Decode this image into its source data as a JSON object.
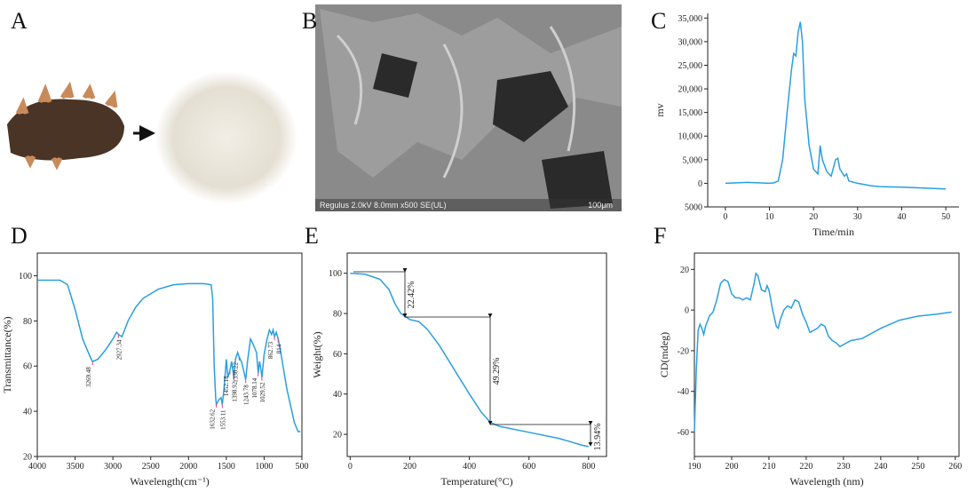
{
  "panel_labels": [
    "A",
    "B",
    "C",
    "D",
    "E",
    "F"
  ],
  "sem_caption": "Regulus 2.0kV 8.0mm x500 SE(UL)",
  "sem_scale": "100μm",
  "chart_data": [
    {
      "type": "line",
      "xlabel": "Time/min",
      "ylabel": "mv",
      "color": "#2a9fe0",
      "xlim": [
        -4,
        53
      ],
      "ylim": [
        -5000,
        36000
      ],
      "xticks": [
        0,
        10,
        20,
        30,
        40,
        50
      ],
      "yticks": [
        {
          "value": -5000,
          "label": "5000"
        },
        0,
        {
          "value": 5000,
          "label": "5,000"
        },
        {
          "value": 10000,
          "label": "10,000"
        },
        {
          "value": 15000,
          "label": "15,000"
        },
        {
          "value": 20000,
          "label": "20,000"
        },
        {
          "value": 25000,
          "label": "25,000"
        },
        {
          "value": 30000,
          "label": "30,000"
        },
        {
          "value": 35000,
          "label": "35,000"
        }
      ],
      "x": [
        0,
        5,
        10,
        11,
        12,
        13,
        14,
        15,
        15.5,
        16,
        16.5,
        17,
        17.5,
        18,
        19,
        20,
        21,
        21.5,
        22,
        23,
        24,
        25,
        25.5,
        26,
        27,
        27.5,
        28,
        30,
        33,
        35,
        40,
        45,
        50
      ],
      "values": [
        0,
        200,
        0,
        100,
        500,
        5000,
        15000,
        24000,
        27500,
        27000,
        32000,
        34200,
        30000,
        18000,
        8000,
        3000,
        2000,
        8000,
        5000,
        2500,
        1500,
        5000,
        5300,
        3000,
        1500,
        2000,
        500,
        0,
        -500,
        -700,
        -800,
        -1000,
        -1200
      ]
    },
    {
      "type": "line",
      "xlabel": "Wavelength(cm⁻¹)",
      "ylabel": "Transmittance(%)",
      "color": "#2a9fe0",
      "xlim": [
        4000,
        500
      ],
      "ylim": [
        20,
        110
      ],
      "xticks": [
        4000,
        3500,
        3000,
        2500,
        2000,
        1500,
        1000,
        500
      ],
      "yticks": [
        20,
        40,
        60,
        80,
        100
      ],
      "x": [
        4000,
        3700,
        3600,
        3500,
        3400,
        3300,
        3269,
        3200,
        3100,
        3000,
        2950,
        2927,
        2880,
        2800,
        2700,
        2600,
        2400,
        2200,
        2000,
        1800,
        1700,
        1680,
        1660,
        1640,
        1632,
        1600,
        1570,
        1553,
        1530,
        1500,
        1480,
        1452,
        1430,
        1400,
        1380,
        1350,
        1330,
        1300,
        1270,
        1243,
        1220,
        1180,
        1150,
        1100,
        1078,
        1060,
        1040,
        1029,
        1000,
        960,
        930,
        900,
        880,
        862,
        840,
        814,
        780,
        700,
        600,
        550,
        520
      ],
      "values": [
        98,
        98,
        96,
        85,
        72,
        64,
        62,
        63,
        67,
        72,
        75,
        74,
        73,
        80,
        86,
        90,
        94,
        96,
        96.5,
        96.5,
        96,
        90,
        60,
        46,
        43,
        45,
        46,
        43,
        50,
        63,
        55,
        58,
        62,
        55,
        63,
        66,
        64,
        62,
        58,
        54,
        62,
        72,
        70,
        66,
        57,
        62,
        58,
        55,
        65,
        72,
        76,
        74,
        76,
        73,
        75,
        72,
        66,
        50,
        35,
        31,
        31
      ],
      "annotations": [
        "3269.48",
        "2927.34",
        "1632.62",
        "1553.11",
        "1452.18",
        "1398.92",
        "1330.22",
        "1243.78",
        "1078.14",
        "1029.52",
        "862.73",
        "814"
      ]
    },
    {
      "type": "line",
      "xlabel": "Temperature(°C)",
      "ylabel": "Weight(%)",
      "color": "#2a9fe0",
      "xlim": [
        -10,
        860
      ],
      "ylim": [
        9,
        110
      ],
      "xticks": [
        0,
        200,
        400,
        600,
        800
      ],
      "yticks": [
        20,
        40,
        60,
        80,
        100
      ],
      "x": [
        0,
        50,
        100,
        130,
        150,
        170,
        200,
        230,
        260,
        300,
        350,
        400,
        440,
        470,
        500,
        600,
        700,
        780,
        800
      ],
      "values": [
        100,
        99.5,
        97,
        92,
        85,
        80,
        77,
        76,
        72,
        64,
        52,
        40,
        31,
        26,
        24,
        21,
        18,
        14.5,
        14
      ],
      "annotations": [
        "22.42%",
        "49.29%",
        "13.94%"
      ]
    },
    {
      "type": "line",
      "xlabel": "Wavelength (nm)",
      "ylabel": "CD(mdeg)",
      "color": "#2a9fe0",
      "xlim": [
        190,
        261
      ],
      "ylim": [
        -72,
        28
      ],
      "xticks": [
        190,
        200,
        210,
        220,
        230,
        240,
        250,
        260
      ],
      "yticks": [
        -60,
        -40,
        -20,
        0,
        20
      ],
      "x": [
        190,
        190.5,
        191,
        191.5,
        192,
        192.5,
        193,
        194,
        195,
        196,
        197,
        198,
        199,
        200,
        201,
        202,
        203,
        204,
        205,
        206,
        206.5,
        207,
        208,
        209,
        209.5,
        210,
        211,
        212,
        212.5,
        213,
        214,
        215,
        216,
        217,
        218,
        219,
        220,
        221,
        222,
        223,
        224,
        225,
        226,
        227,
        228,
        229,
        230,
        232,
        235,
        240,
        245,
        250,
        255,
        259
      ],
      "values": [
        -60,
        -30,
        -10,
        -7,
        -9,
        -12,
        -8,
        -3,
        -1,
        5,
        13,
        15,
        14,
        8,
        6,
        6,
        5,
        6,
        5,
        13,
        18,
        17,
        10,
        9,
        12,
        10,
        0,
        -8,
        -9,
        -5,
        0,
        2,
        1,
        5,
        4,
        -2,
        -6,
        -11,
        -10,
        -9,
        -7,
        -8,
        -13,
        -15,
        -16,
        -18,
        -17,
        -15,
        -14,
        -9,
        -5,
        -3,
        -2,
        -1
      ]
    }
  ]
}
